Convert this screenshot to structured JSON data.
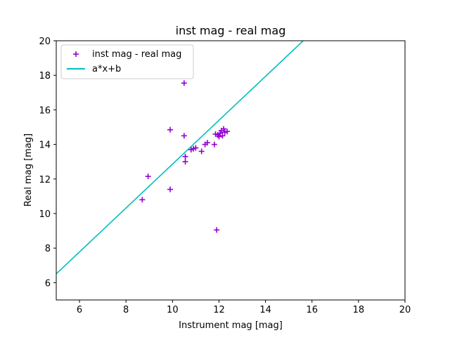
{
  "chart_data": {
    "type": "scatter",
    "title": "inst mag - real mag",
    "xlabel": "Instrument mag [mag]",
    "ylabel": "Real mag [mag]",
    "xlim": [
      5,
      20
    ],
    "ylim": [
      5,
      20
    ],
    "xticks": [
      6,
      8,
      10,
      12,
      14,
      16,
      18,
      20
    ],
    "yticks": [
      6,
      8,
      10,
      12,
      14,
      16,
      18,
      20
    ],
    "grid": false,
    "legend_position": "top-left",
    "series": [
      {
        "name": "inst mag - real mag",
        "kind": "scatter",
        "marker": "+",
        "color": "#9400d3",
        "points": [
          [
            8.7,
            10.8
          ],
          [
            8.95,
            12.15
          ],
          [
            9.9,
            11.4
          ],
          [
            9.9,
            14.85
          ],
          [
            10.5,
            17.55
          ],
          [
            10.5,
            14.5
          ],
          [
            10.55,
            13.3
          ],
          [
            10.55,
            13.0
          ],
          [
            10.8,
            13.7
          ],
          [
            10.9,
            13.75
          ],
          [
            11.0,
            13.8
          ],
          [
            11.25,
            13.6
          ],
          [
            11.4,
            14.0
          ],
          [
            11.5,
            14.1
          ],
          [
            11.8,
            14.0
          ],
          [
            11.85,
            14.6
          ],
          [
            11.9,
            9.05
          ],
          [
            11.95,
            14.55
          ],
          [
            12.0,
            14.45
          ],
          [
            12.05,
            14.65
          ],
          [
            12.1,
            14.8
          ],
          [
            12.15,
            14.5
          ],
          [
            12.2,
            14.9
          ],
          [
            12.25,
            14.7
          ],
          [
            12.35,
            14.75
          ]
        ]
      },
      {
        "name": "a*x+b",
        "kind": "line",
        "color": "#00bfbf",
        "slope": 1.27,
        "intercept": 0.16
      }
    ]
  }
}
